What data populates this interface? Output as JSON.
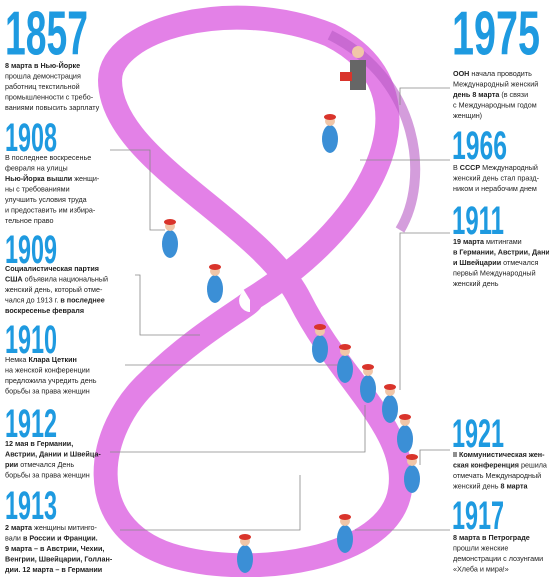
{
  "timeline": {
    "left": [
      {
        "year": "1857",
        "lines": [
          [
            {
              "text": "8 марта в Нью-Йорке",
              "bold": true
            }
          ],
          [
            {
              "text": "прошла демонстрация",
              "bold": false
            }
          ],
          [
            {
              "text": "работниц текстильной",
              "bold": false
            }
          ],
          [
            {
              "text": "промышленности с требо-",
              "bold": false
            }
          ],
          [
            {
              "text": "ваниями повысить зарплату",
              "bold": false
            }
          ]
        ]
      },
      {
        "year": "1908",
        "lines": [
          [
            {
              "text": "В последнее воскресенье",
              "bold": false
            }
          ],
          [
            {
              "text": "февраля на улицы",
              "bold": false
            }
          ],
          [
            {
              "text": "Нью-Йорка вышли",
              "bold": true
            },
            {
              "text": " женщи-",
              "bold": false
            }
          ],
          [
            {
              "text": "ны с требованиями",
              "bold": false
            }
          ],
          [
            {
              "text": "улучшить условия труда",
              "bold": false
            }
          ],
          [
            {
              "text": "и предоставить им избира-",
              "bold": false
            }
          ],
          [
            {
              "text": "тельное право",
              "bold": false
            }
          ]
        ]
      },
      {
        "year": "1909",
        "lines": [
          [
            {
              "text": "Социалистическая партия",
              "bold": true
            }
          ],
          [
            {
              "text": "США",
              "bold": true
            },
            {
              "text": " объявила национальный",
              "bold": false
            }
          ],
          [
            {
              "text": "женский день, который отме-",
              "bold": false
            }
          ],
          [
            {
              "text": "чался до 1913 г. ",
              "bold": false
            },
            {
              "text": "в последнее",
              "bold": true
            }
          ],
          [
            {
              "text": "воскресенье февраля",
              "bold": true
            }
          ]
        ]
      },
      {
        "year": "1910",
        "lines": [
          [
            {
              "text": "Немка ",
              "bold": false
            },
            {
              "text": "Клара Цеткин",
              "bold": true
            }
          ],
          [
            {
              "text": "на женской конференции",
              "bold": false
            }
          ],
          [
            {
              "text": "предложила учредить день",
              "bold": false
            }
          ],
          [
            {
              "text": "борьбы за права женщин",
              "bold": false
            }
          ]
        ]
      },
      {
        "year": "1912",
        "lines": [
          [
            {
              "text": "12 мая в Германии,",
              "bold": true
            }
          ],
          [
            {
              "text": "Австрии, Дании и Швейца-",
              "bold": true
            }
          ],
          [
            {
              "text": "рии",
              "bold": true
            },
            {
              "text": " отмечался День",
              "bold": false
            }
          ],
          [
            {
              "text": "борьбы за права женщин",
              "bold": false
            }
          ]
        ]
      },
      {
        "year": "1913",
        "lines": [
          [
            {
              "text": "2 марта",
              "bold": true
            },
            {
              "text": " женщины митинго-",
              "bold": false
            }
          ],
          [
            {
              "text": "вали ",
              "bold": false
            },
            {
              "text": "в России и Франции.",
              "bold": true
            }
          ],
          [
            {
              "text": "9 марта – в Австрии, Чехии,",
              "bold": true
            }
          ],
          [
            {
              "text": "Венгрии, Швейцарии, Голлан-",
              "bold": true
            }
          ],
          [
            {
              "text": "дии. 12 марта – в Германии",
              "bold": true
            }
          ]
        ]
      }
    ],
    "right": [
      {
        "year": "1975",
        "lines": [
          [
            {
              "text": "ООН",
              "bold": true
            },
            {
              "text": " начала проводить",
              "bold": false
            }
          ],
          [
            {
              "text": "Международный женский",
              "bold": false
            }
          ],
          [
            {
              "text": "день 8 марта",
              "bold": true
            },
            {
              "text": " (в связи",
              "bold": false
            }
          ],
          [
            {
              "text": "с Международным годом",
              "bold": false
            }
          ],
          [
            {
              "text": "женщин)",
              "bold": false
            }
          ]
        ]
      },
      {
        "year": "1966",
        "lines": [
          [
            {
              "text": "В ",
              "bold": false
            },
            {
              "text": "СССР",
              "bold": true
            },
            {
              "text": " Международный",
              "bold": false
            }
          ],
          [
            {
              "text": "женский день стал празд-",
              "bold": false
            }
          ],
          [
            {
              "text": "ником и нерабочим днем",
              "bold": false
            }
          ]
        ]
      },
      {
        "year": "1911",
        "lines": [
          [
            {
              "text": "19 марта",
              "bold": true
            },
            {
              "text": " митингами",
              "bold": false
            }
          ],
          [
            {
              "text": "в Германии, Австрии, Дании",
              "bold": true
            }
          ],
          [
            {
              "text": "и Швейцарии",
              "bold": true
            },
            {
              "text": " отмечался",
              "bold": false
            }
          ],
          [
            {
              "text": "первый Международный",
              "bold": false
            }
          ],
          [
            {
              "text": "женский день",
              "bold": false
            }
          ]
        ]
      },
      {
        "year": "1921",
        "lines": [
          [
            {
              "text": "II Коммунистическая жен-",
              "bold": true
            }
          ],
          [
            {
              "text": "ская конференция",
              "bold": true
            },
            {
              "text": " решила",
              "bold": false
            }
          ],
          [
            {
              "text": "отмечать Международный",
              "bold": false
            }
          ],
          [
            {
              "text": "женский день ",
              "bold": false
            },
            {
              "text": "8 марта",
              "bold": true
            }
          ]
        ]
      },
      {
        "year": "1917",
        "lines": [
          [
            {
              "text": "8 марта в Петрограде",
              "bold": true
            }
          ],
          [
            {
              "text": "прошли женские",
              "bold": false
            }
          ],
          [
            {
              "text": "демонстрации с лозунгами",
              "bold": false
            }
          ],
          [
            {
              "text": "«Хлеба и мира!»",
              "bold": false
            }
          ]
        ]
      }
    ]
  }
}
